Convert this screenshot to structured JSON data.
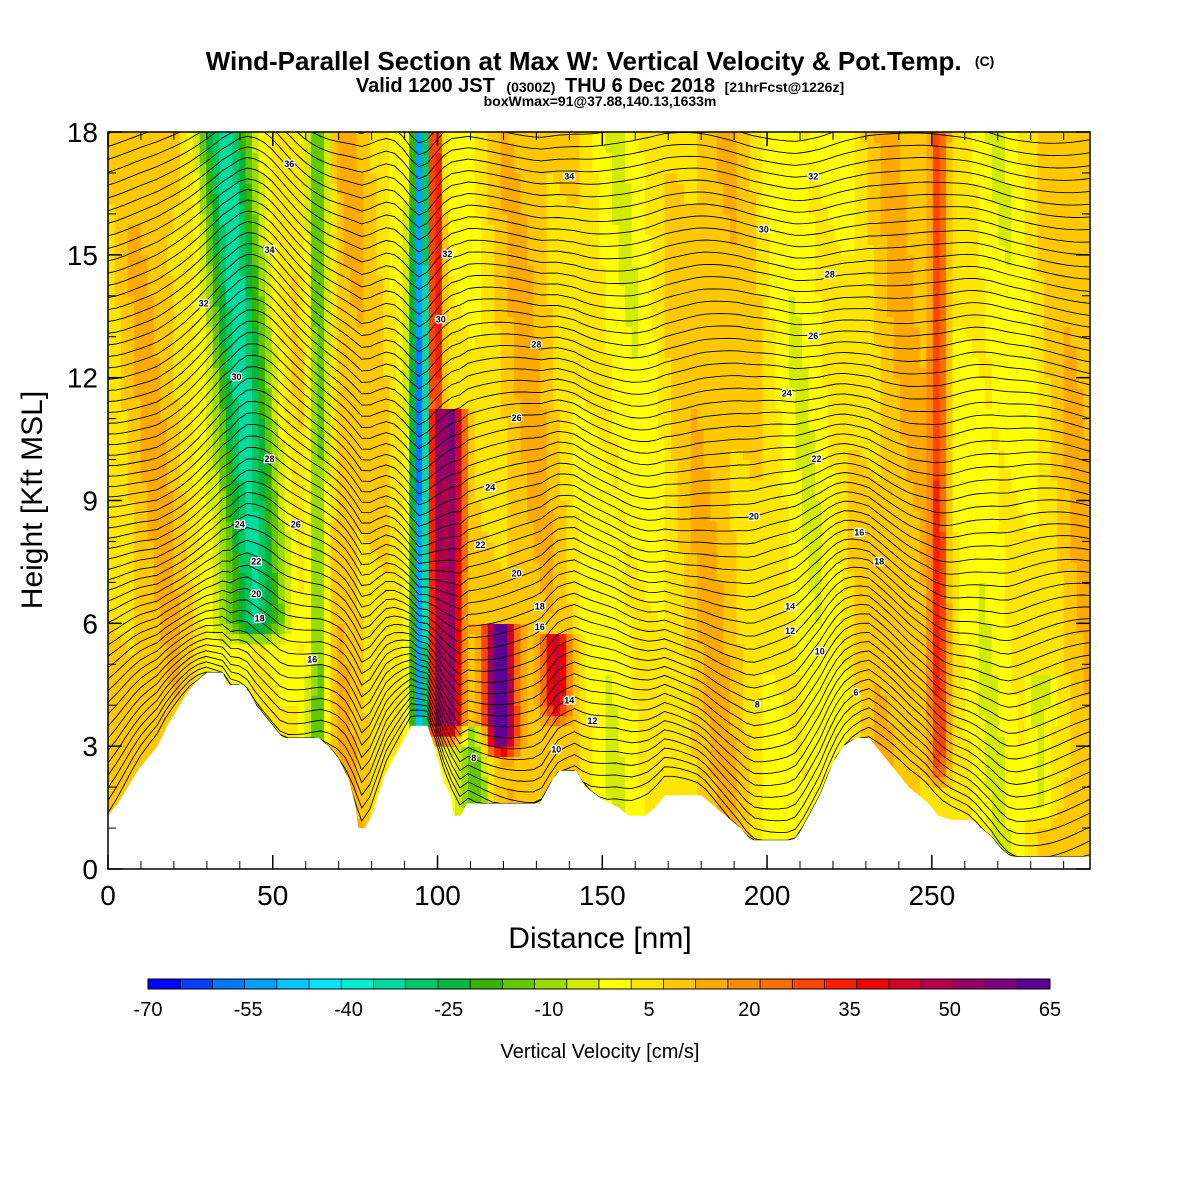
{
  "chart_data": {
    "type": "heatmap",
    "title": "Wind-Parallel Section at Max W: Vertical Velocity & Pot.Temp.",
    "title_mark": "(C)",
    "subtitle_main": "Valid 1200 JST",
    "subtitle_zulu": "(0300Z)",
    "subtitle_date": "THU 6 Dec 2018",
    "subtitle_fcst": "[21hrFcst@1226z]",
    "subtitle2": "boxWmax=91@37.88,140.13,1633m",
    "xlabel": "Distance [nm]",
    "ylabel": "Height [Kft MSL]",
    "xlim": [
      0,
      298
    ],
    "ylim": [
      0,
      18
    ],
    "x_ticks": [
      "0",
      "50",
      "100",
      "150",
      "200",
      "250"
    ],
    "x_tick_values": [
      0,
      50,
      100,
      150,
      200,
      250
    ],
    "y_ticks": [
      "0",
      "3",
      "6",
      "9",
      "12",
      "15",
      "18"
    ],
    "y_tick_values": [
      0,
      3,
      6,
      9,
      12,
      15,
      18
    ],
    "colorbar": {
      "label": "Vertical Velocity [cm/s]",
      "ticks": [
        "-70",
        "-55",
        "-40",
        "-25",
        "-10",
        "5",
        "20",
        "35",
        "50",
        "65"
      ],
      "levels": [
        -70,
        -65,
        -60,
        -55,
        -50,
        -45,
        -40,
        -35,
        -30,
        -25,
        -20,
        -15,
        -10,
        -5,
        0,
        5,
        10,
        15,
        20,
        25,
        30,
        35,
        40,
        45,
        50,
        55,
        60,
        65
      ],
      "colors": [
        "#0000ff",
        "#0a3cff",
        "#0078ff",
        "#00a0ff",
        "#00c8ff",
        "#00e6ff",
        "#00f0d2",
        "#00dca0",
        "#00c864",
        "#00b43c",
        "#32b400",
        "#64c800",
        "#9bdc00",
        "#d2eb00",
        "#ffff00",
        "#ffe600",
        "#ffc800",
        "#ffaa00",
        "#ff8c00",
        "#ff6e00",
        "#ff4600",
        "#ff1e00",
        "#f00000",
        "#d2002d",
        "#b4004b",
        "#960064",
        "#78007d",
        "#5a0096"
      ]
    },
    "vertical_velocity_features": [
      {
        "x_center": 45,
        "y_bottom": 6.0,
        "y_top": 18,
        "width": 12,
        "w": -35,
        "tilt": -0.9
      },
      {
        "x_center": 64,
        "y_bottom": 3.0,
        "y_top": 18,
        "width": 5,
        "w": -25,
        "tilt": 0
      },
      {
        "x_center": 95,
        "y_bottom": 3.5,
        "y_top": 18,
        "width": 4,
        "w": -60,
        "tilt": 0
      },
      {
        "x_center": 99,
        "y_bottom": 3.5,
        "y_top": 18,
        "width": 3.5,
        "w": 45,
        "tilt": 0
      },
      {
        "x_center": 104,
        "y_bottom": 3.5,
        "y_top": 11,
        "width": 6,
        "w": 55,
        "tilt": 0
      },
      {
        "x_center": 119,
        "y_bottom": 3.2,
        "y_top": 5.8,
        "width": 7,
        "w": 60,
        "tilt": 0
      },
      {
        "x_center": 136,
        "y_bottom": 4.0,
        "y_top": 5.5,
        "width": 6,
        "w": 35,
        "tilt": 0
      },
      {
        "x_center": 112,
        "y_bottom": 1.6,
        "y_top": 3.2,
        "width": 6,
        "w": -20,
        "tilt": 0
      },
      {
        "x_center": 252,
        "y_bottom": 2.5,
        "y_top": 18,
        "width": 4,
        "w": 25,
        "tilt": 0
      },
      {
        "x_center": 283,
        "y_bottom": 1.5,
        "y_top": 4.5,
        "width": 6,
        "w": -12,
        "tilt": 0
      }
    ],
    "terrain_kft": [
      [
        0,
        1.3
      ],
      [
        3,
        1.6
      ],
      [
        6,
        2.0
      ],
      [
        9,
        2.4
      ],
      [
        12,
        2.7
      ],
      [
        15,
        3.0
      ],
      [
        18,
        3.5
      ],
      [
        21,
        3.9
      ],
      [
        24,
        4.3
      ],
      [
        27,
        4.6
      ],
      [
        30,
        4.8
      ],
      [
        35,
        4.8
      ],
      [
        36,
        4.5
      ],
      [
        41,
        4.5
      ],
      [
        43,
        4.3
      ],
      [
        45,
        4.0
      ],
      [
        47,
        3.8
      ],
      [
        49,
        3.6
      ],
      [
        51,
        3.4
      ],
      [
        53,
        3.2
      ],
      [
        60,
        3.2
      ],
      [
        64,
        3.2
      ],
      [
        67,
        3.0
      ],
      [
        70,
        2.7
      ],
      [
        73,
        2.2
      ],
      [
        75,
        1.6
      ],
      [
        76,
        1.0
      ],
      [
        78,
        1.0
      ],
      [
        80,
        1.3
      ],
      [
        82,
        1.8
      ],
      [
        84,
        2.3
      ],
      [
        86,
        2.6
      ],
      [
        88,
        2.9
      ],
      [
        90,
        3.2
      ],
      [
        92,
        3.5
      ],
      [
        97,
        3.5
      ],
      [
        99,
        3.0
      ],
      [
        100,
        2.7
      ],
      [
        101,
        2.4
      ],
      [
        102,
        2.1
      ],
      [
        104,
        1.8
      ],
      [
        105,
        1.3
      ],
      [
        107,
        1.3
      ],
      [
        109,
        1.6
      ],
      [
        131,
        1.6
      ],
      [
        133,
        1.9
      ],
      [
        135,
        2.2
      ],
      [
        137,
        2.4
      ],
      [
        142,
        2.4
      ],
      [
        145,
        2.0
      ],
      [
        150,
        1.7
      ],
      [
        155,
        1.5
      ],
      [
        158,
        1.3
      ],
      [
        163,
        1.3
      ],
      [
        166,
        1.5
      ],
      [
        169,
        1.8
      ],
      [
        180,
        1.8
      ],
      [
        183,
        1.6
      ],
      [
        186,
        1.4
      ],
      [
        189,
        1.2
      ],
      [
        192,
        1.0
      ],
      [
        195,
        0.7
      ],
      [
        208,
        0.7
      ],
      [
        210,
        0.9
      ],
      [
        212,
        1.2
      ],
      [
        214,
        1.5
      ],
      [
        216,
        1.8
      ],
      [
        218,
        2.2
      ],
      [
        220,
        2.6
      ],
      [
        223,
        3.0
      ],
      [
        227,
        3.2
      ],
      [
        231,
        3.2
      ],
      [
        234,
        2.9
      ],
      [
        237,
        2.6
      ],
      [
        240,
        2.3
      ],
      [
        243,
        2.0
      ],
      [
        246,
        1.8
      ],
      [
        249,
        1.6
      ],
      [
        252,
        1.3
      ],
      [
        256,
        1.2
      ],
      [
        262,
        1.2
      ],
      [
        265,
        1.0
      ],
      [
        268,
        0.8
      ],
      [
        271,
        0.5
      ],
      [
        274,
        0.3
      ],
      [
        298,
        0.3
      ]
    ],
    "theta_contour_labels": [
      {
        "x": 55,
        "y": 17.2,
        "text": "36"
      },
      {
        "x": 140,
        "y": 16.9,
        "text": "34"
      },
      {
        "x": 214,
        "y": 16.9,
        "text": "32"
      },
      {
        "x": 49,
        "y": 15.1,
        "text": "34"
      },
      {
        "x": 103,
        "y": 15.0,
        "text": "32"
      },
      {
        "x": 199,
        "y": 15.6,
        "text": "30"
      },
      {
        "x": 219,
        "y": 14.5,
        "text": "28"
      },
      {
        "x": 29,
        "y": 13.8,
        "text": "32"
      },
      {
        "x": 101,
        "y": 13.4,
        "text": "30"
      },
      {
        "x": 130,
        "y": 12.8,
        "text": "28"
      },
      {
        "x": 214,
        "y": 13.0,
        "text": "26"
      },
      {
        "x": 39,
        "y": 12.0,
        "text": "30"
      },
      {
        "x": 124,
        "y": 11.0,
        "text": "26"
      },
      {
        "x": 206,
        "y": 11.6,
        "text": "24"
      },
      {
        "x": 49,
        "y": 10.0,
        "text": "28"
      },
      {
        "x": 116,
        "y": 9.3,
        "text": "24"
      },
      {
        "x": 215,
        "y": 10.0,
        "text": "22"
      },
      {
        "x": 40,
        "y": 8.4,
        "text": "24"
      },
      {
        "x": 57,
        "y": 8.4,
        "text": "26"
      },
      {
        "x": 196,
        "y": 8.6,
        "text": "20"
      },
      {
        "x": 228,
        "y": 8.2,
        "text": "16"
      },
      {
        "x": 113,
        "y": 7.9,
        "text": "22"
      },
      {
        "x": 45,
        "y": 7.5,
        "text": "22"
      },
      {
        "x": 234,
        "y": 7.5,
        "text": "18"
      },
      {
        "x": 124,
        "y": 7.2,
        "text": "20"
      },
      {
        "x": 45,
        "y": 6.7,
        "text": "20"
      },
      {
        "x": 131,
        "y": 6.4,
        "text": "18"
      },
      {
        "x": 207,
        "y": 6.4,
        "text": "14"
      },
      {
        "x": 46,
        "y": 6.1,
        "text": "18"
      },
      {
        "x": 131,
        "y": 5.9,
        "text": "16"
      },
      {
        "x": 207,
        "y": 5.8,
        "text": "12"
      },
      {
        "x": 62,
        "y": 5.1,
        "text": "16"
      },
      {
        "x": 216,
        "y": 5.3,
        "text": "10"
      },
      {
        "x": 140,
        "y": 4.1,
        "text": "14"
      },
      {
        "x": 147,
        "y": 3.6,
        "text": "12"
      },
      {
        "x": 227,
        "y": 4.3,
        "text": "6"
      },
      {
        "x": 197,
        "y": 4.0,
        "text": "8"
      },
      {
        "x": 136,
        "y": 2.9,
        "text": "10"
      },
      {
        "x": 111,
        "y": 2.7,
        "text": "8"
      }
    ]
  }
}
